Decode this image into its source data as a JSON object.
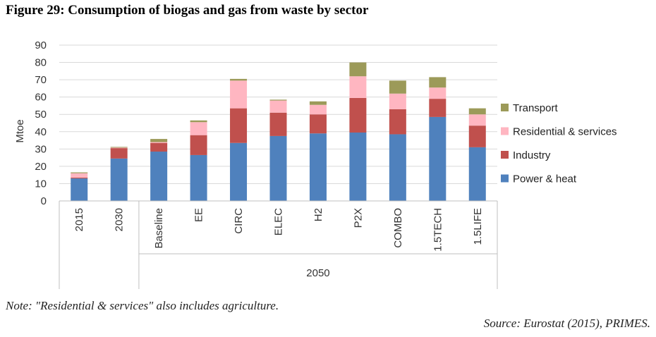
{
  "figure": {
    "title": "Figure 29: Consumption of biogas and gas from waste by sector",
    "note": "Note: \"Residential & services\" also includes agriculture.",
    "source": "Source: Eurostat (2015), PRIMES."
  },
  "chart_data": {
    "type": "bar",
    "stacked": true,
    "title": "",
    "xlabel": "",
    "ylabel": "Mtoe",
    "ylim": [
      0,
      90
    ],
    "yticks": [
      0,
      10,
      20,
      30,
      40,
      50,
      60,
      70,
      80,
      90
    ],
    "grid": true,
    "legend_position": "right",
    "categories": [
      "2015",
      "2030",
      "Baseline",
      "EE",
      "CIRC",
      "ELEC",
      "H2",
      "P2X",
      "COMBO",
      "1.5TECH",
      "1.5LIFE"
    ],
    "category_groups": [
      {
        "label": "",
        "categories": [
          "2015",
          "2030"
        ]
      },
      {
        "label": "2050",
        "categories": [
          "Baseline",
          "EE",
          "CIRC",
          "ELEC",
          "H2",
          "P2X",
          "COMBO",
          "1.5TECH",
          "1.5LIFE"
        ]
      }
    ],
    "series": [
      {
        "name": "Power & heat",
        "color": "#4f81bd",
        "values": [
          13,
          24.5,
          28.5,
          26.5,
          33.5,
          37.5,
          39,
          39.5,
          38.5,
          48.5,
          31
        ]
      },
      {
        "name": "Industry",
        "color": "#c0504d",
        "values": [
          0.5,
          6,
          5,
          11.5,
          20,
          13.5,
          11,
          20,
          14.5,
          10.5,
          12.5
        ]
      },
      {
        "name": "Residential & services",
        "color": "#ffb6c1",
        "values": [
          2.5,
          0.3,
          0.5,
          7.5,
          16,
          7,
          5.5,
          12.5,
          9,
          6.5,
          6.5
        ]
      },
      {
        "name": "Transport",
        "color": "#9c9a59",
        "values": [
          0.5,
          0.4,
          1.8,
          1,
          1,
          0.5,
          2,
          8,
          7.5,
          6,
          3.5
        ]
      }
    ]
  }
}
